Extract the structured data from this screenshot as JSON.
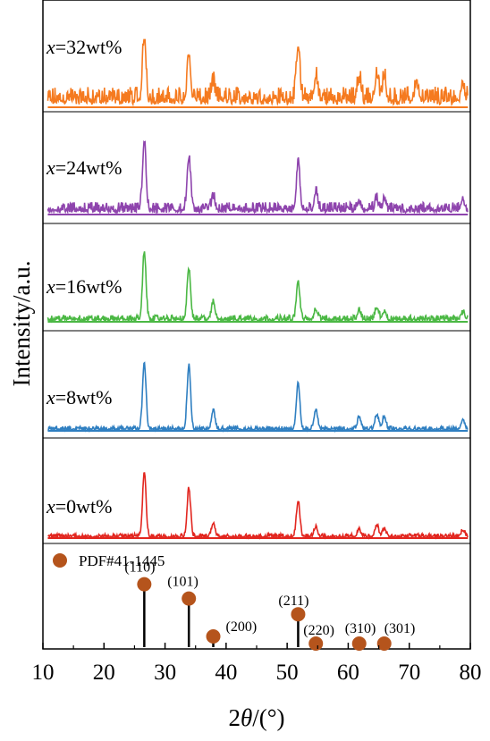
{
  "chart_data": {
    "type": "line",
    "xlabel_prefix": "2",
    "xlabel_symbol": "θ",
    "xlabel_suffix": "/(°)",
    "ylabel": "Intensity/a.u.",
    "xlim": [
      10,
      80
    ],
    "xticks": [
      10,
      20,
      30,
      40,
      50,
      60,
      70,
      80
    ],
    "series": [
      {
        "name_var": "x",
        "name_rest": "=32wt%",
        "color": "#f57a1f",
        "peaks": [
          [
            26.6,
            1.0
          ],
          [
            33.9,
            0.7
          ],
          [
            37.9,
            0.25
          ],
          [
            51.8,
            0.85
          ],
          [
            54.7,
            0.35
          ],
          [
            61.8,
            0.35
          ],
          [
            64.7,
            0.4
          ],
          [
            65.9,
            0.35
          ],
          [
            71.2,
            0.3
          ],
          [
            78.8,
            0.25
          ]
        ],
        "noise": 0.32
      },
      {
        "name_var": "x",
        "name_rest": "=24wt%",
        "color": "#8e44ad",
        "peaks": [
          [
            26.6,
            1.0
          ],
          [
            33.9,
            0.75
          ],
          [
            37.9,
            0.2
          ],
          [
            51.8,
            0.65
          ],
          [
            54.7,
            0.25
          ],
          [
            61.8,
            0.12
          ],
          [
            64.7,
            0.15
          ],
          [
            65.9,
            0.12
          ],
          [
            78.8,
            0.15
          ]
        ],
        "noise": 0.18
      },
      {
        "name_var": "x",
        "name_rest": "=16wt%",
        "color": "#4bb844",
        "peaks": [
          [
            26.6,
            1.0
          ],
          [
            33.9,
            0.75
          ],
          [
            37.9,
            0.25
          ],
          [
            51.8,
            0.55
          ],
          [
            54.7,
            0.15
          ],
          [
            61.8,
            0.12
          ],
          [
            64.7,
            0.18
          ],
          [
            65.9,
            0.12
          ],
          [
            78.8,
            0.1
          ]
        ],
        "noise": 0.1
      },
      {
        "name_var": "x",
        "name_rest": "=8wt%",
        "color": "#2f7fc1",
        "peaks": [
          [
            26.6,
            1.0
          ],
          [
            33.9,
            0.95
          ],
          [
            37.9,
            0.28
          ],
          [
            51.8,
            0.7
          ],
          [
            54.7,
            0.3
          ],
          [
            61.8,
            0.18
          ],
          [
            64.7,
            0.22
          ],
          [
            65.9,
            0.18
          ],
          [
            78.8,
            0.14
          ]
        ],
        "noise": 0.07
      },
      {
        "name_var": "x",
        "name_rest": "=0wt%",
        "color": "#e2261f",
        "peaks": [
          [
            26.6,
            1.0
          ],
          [
            33.9,
            0.75
          ],
          [
            37.9,
            0.2
          ],
          [
            51.8,
            0.55
          ],
          [
            54.7,
            0.15
          ],
          [
            61.8,
            0.1
          ],
          [
            64.7,
            0.18
          ],
          [
            65.9,
            0.12
          ],
          [
            78.8,
            0.1
          ]
        ],
        "noise": 0.07
      }
    ],
    "reference": {
      "legend": "PDF#41-1445",
      "color": "#b5541c",
      "peaks": [
        {
          "x": 26.6,
          "y": 0.88,
          "label": "(110)"
        },
        {
          "x": 33.9,
          "y": 0.68,
          "label": "(101)"
        },
        {
          "x": 37.9,
          "y": 0.15,
          "label": "(200)"
        },
        {
          "x": 51.8,
          "y": 0.46,
          "label": "(211)"
        },
        {
          "x": 54.7,
          "y": 0.05,
          "label": "(220)"
        },
        {
          "x": 61.8,
          "y": 0.05,
          "label": "(310)"
        },
        {
          "x": 65.9,
          "y": 0.05,
          "label": "(301)"
        }
      ]
    }
  }
}
